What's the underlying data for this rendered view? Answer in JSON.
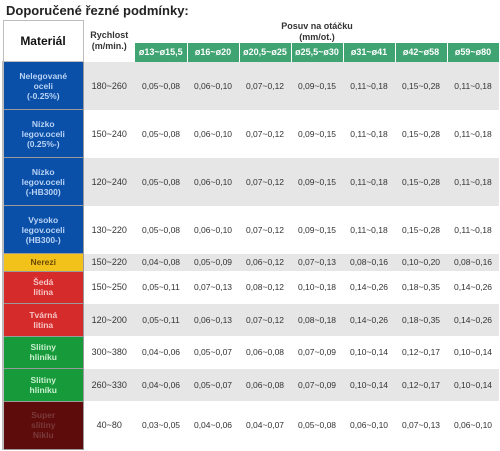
{
  "title": "Doporučené řezné podmínky:",
  "headers": {
    "material": "Materiál",
    "speed_line1": "Rychlost",
    "speed_line2": "(m/min.)",
    "feed_line1": "Posuv na otáčku",
    "feed_line2": "(mm/ot.)",
    "diameters": [
      "ø13~ø15,5",
      "ø16~ø20",
      "ø20,5~ø25",
      "ø25,5~ø30",
      "ø31~ø41",
      "ø42~ø58",
      "ø59~ø80"
    ]
  },
  "colors": {
    "header_green": "#3fa372",
    "blue": "#0a4fa8",
    "yellow": "#f2c21b",
    "red": "#d62b2b",
    "green": "#179a3a",
    "maroon": "#5e0b0b"
  },
  "rows": [
    {
      "material": [
        "Nelegované",
        "oceli",
        "(-0.25%)"
      ],
      "color": "blue",
      "speed": "180~260",
      "feeds": [
        "0,05~0,08",
        "0,06~0,10",
        "0,07~0,12",
        "0,09~0,15",
        "0,11~0,18",
        "0,15~0,28",
        "0,11~0,18"
      ]
    },
    {
      "material": [
        "Nízko",
        "legov.oceli",
        "(0.25%-)"
      ],
      "color": "blue",
      "speed": "150~240",
      "feeds": [
        "0,05~0,08",
        "0,06~0,10",
        "0,07~0,12",
        "0,09~0,15",
        "0,11~0,18",
        "0,15~0,28",
        "0,11~0,18"
      ]
    },
    {
      "material": [
        "Nízko",
        "legov.oceli",
        "(-HB300)"
      ],
      "color": "blue",
      "speed": "120~240",
      "feeds": [
        "0,05~0,08",
        "0,06~0,10",
        "0,07~0,12",
        "0,09~0,15",
        "0,11~0,18",
        "0,15~0,28",
        "0,11~0,18"
      ]
    },
    {
      "material": [
        "Vysoko",
        "legov.oceli",
        "(HB300-)"
      ],
      "color": "blue",
      "speed": "130~220",
      "feeds": [
        "0,05~0,08",
        "0,06~0,10",
        "0,07~0,12",
        "0,09~0,15",
        "0,11~0,18",
        "0,15~0,28",
        "0,11~0,18"
      ]
    },
    {
      "material": [
        "Nerezi"
      ],
      "color": "yellow",
      "speed": "150~220",
      "feeds": [
        "0,04~0,08",
        "0,05~0,09",
        "0,06~0,12",
        "0,07~0,13",
        "0,08~0,16",
        "0,10~0,20",
        "0,08~0,16"
      ]
    },
    {
      "material": [
        "Šedá",
        "litina"
      ],
      "color": "red",
      "speed": "150~250",
      "feeds": [
        "0,05~0,11",
        "0,07~0,13",
        "0,08~0,12",
        "0,10~0,18",
        "0,14~0,26",
        "0,18~0,35",
        "0,14~0,26"
      ]
    },
    {
      "material": [
        "Tvárná",
        "litina"
      ],
      "color": "red",
      "speed": "120~200",
      "feeds": [
        "0,05~0,11",
        "0,06~0,13",
        "0,07~0,12",
        "0,08~0,18",
        "0,14~0,26",
        "0,18~0,35",
        "0,14~0,26"
      ]
    },
    {
      "material": [
        "Slitiny",
        "hliníku"
      ],
      "color": "green",
      "speed": "300~380",
      "feeds": [
        "0,04~0,06",
        "0,05~0,07",
        "0,06~0,08",
        "0,07~0,09",
        "0,10~0,14",
        "0,12~0,17",
        "0,10~0,14"
      ]
    },
    {
      "material": [
        "Slitiny",
        "hliníku"
      ],
      "color": "green",
      "speed": "260~330",
      "feeds": [
        "0,04~0,06",
        "0,05~0,07",
        "0,06~0,08",
        "0,07~0,09",
        "0,10~0,14",
        "0,12~0,17",
        "0,10~0,14"
      ]
    },
    {
      "material": [
        "Super",
        "slitiny",
        "Niklu"
      ],
      "color": "maroon",
      "speed": "40~80",
      "feeds": [
        "0,03~0,05",
        "0,04~0,06",
        "0,04~0,07",
        "0,05~0,08",
        "0,06~0,10",
        "0,07~0,13",
        "0,06~0,10"
      ]
    }
  ]
}
